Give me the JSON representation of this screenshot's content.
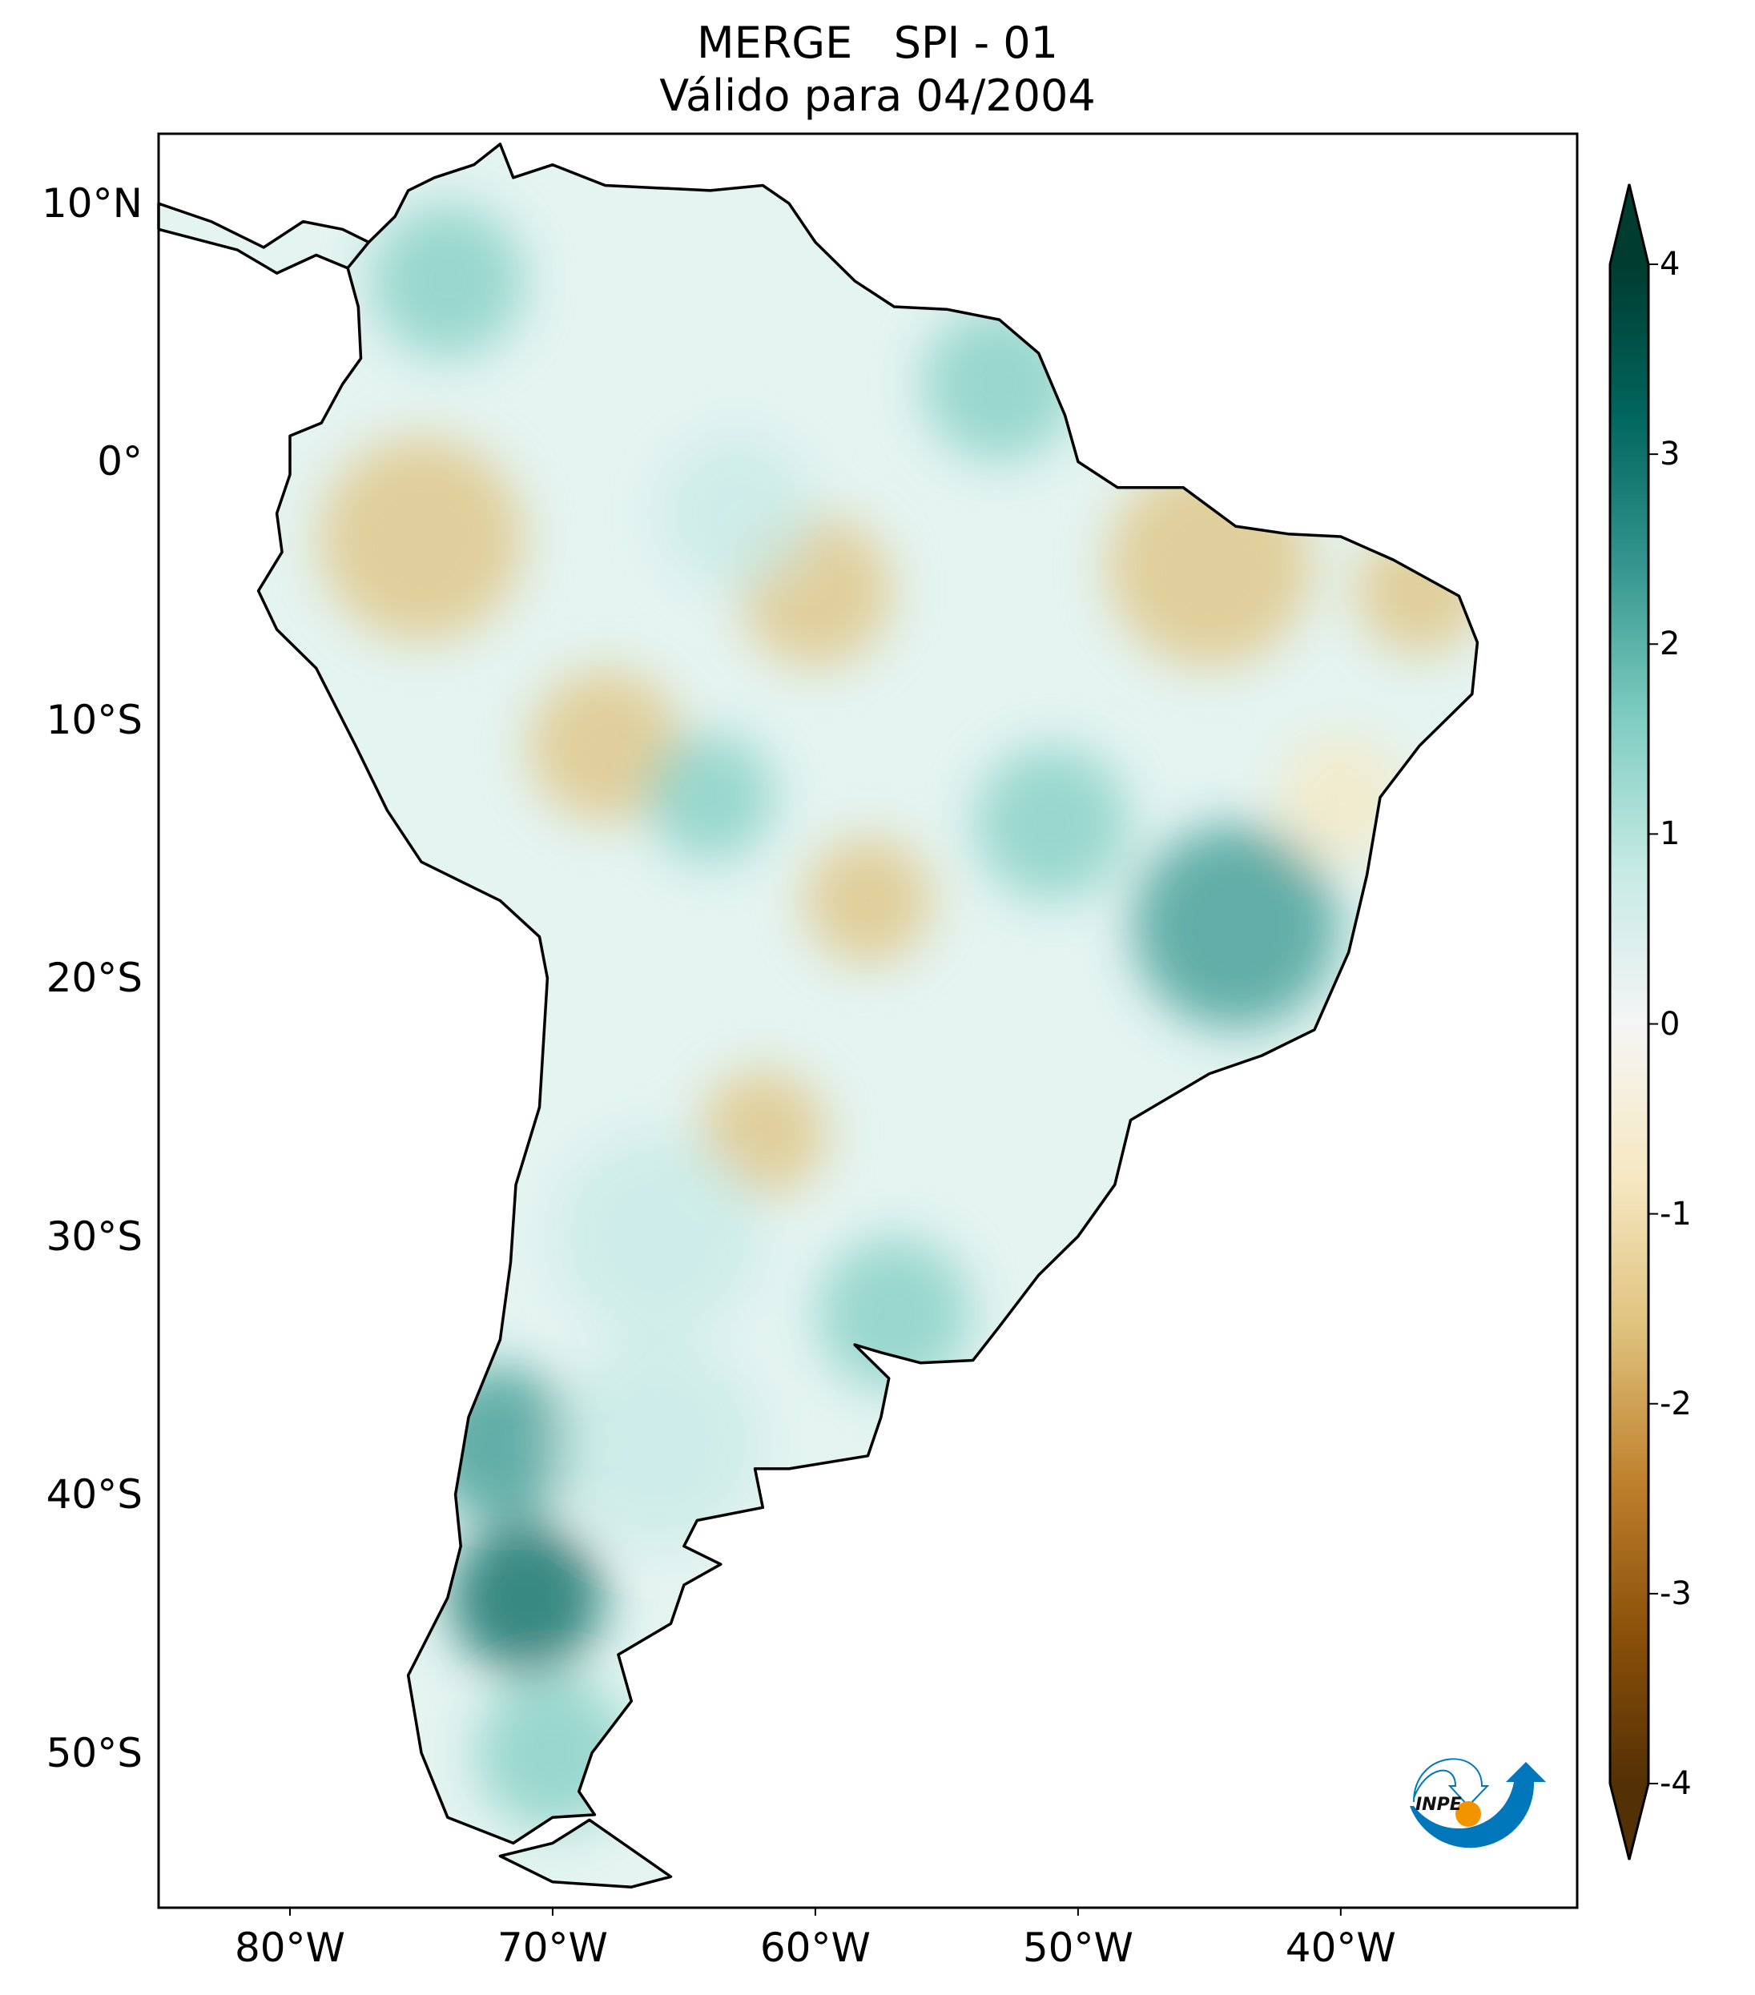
{
  "title": {
    "line1": "MERGE   SPI - 01",
    "line2": "Válido para 04/2004"
  },
  "map": {
    "extent_lon": [
      -85,
      -31
    ],
    "extent_lat": [
      -56,
      12.7
    ],
    "lon_ticks": [
      {
        "value": -80,
        "label": "80°W"
      },
      {
        "value": -70,
        "label": "70°W"
      },
      {
        "value": -60,
        "label": "60°W"
      },
      {
        "value": -50,
        "label": "50°W"
      },
      {
        "value": -40,
        "label": "40°W"
      }
    ],
    "lat_ticks": [
      {
        "value": 10,
        "label": "10°N"
      },
      {
        "value": 0,
        "label": "0°"
      },
      {
        "value": -10,
        "label": "10°S"
      },
      {
        "value": -20,
        "label": "20°S"
      },
      {
        "value": -30,
        "label": "30°S"
      },
      {
        "value": -40,
        "label": "40°S"
      },
      {
        "value": -50,
        "label": "50°S"
      }
    ]
  },
  "colorbar": {
    "range": [
      -4,
      4
    ],
    "ticks": [
      {
        "value": 4,
        "label": "4"
      },
      {
        "value": 3,
        "label": "3"
      },
      {
        "value": 2,
        "label": "2"
      },
      {
        "value": 1,
        "label": "1"
      },
      {
        "value": 0,
        "label": "0"
      },
      {
        "value": -1,
        "label": "-1"
      },
      {
        "value": -2,
        "label": "-2"
      },
      {
        "value": -3,
        "label": "-3"
      },
      {
        "value": -4,
        "label": "-4"
      }
    ],
    "colors": [
      "#543005",
      "#8c510a",
      "#bf812d",
      "#dfc27d",
      "#f6e8c3",
      "#f5f5f5",
      "#c7eae5",
      "#80cdc1",
      "#35978f",
      "#01665e",
      "#003c30"
    ]
  },
  "logo": {
    "text": "INPE",
    "blue": "#0077bb",
    "orange": "#f29400"
  }
}
